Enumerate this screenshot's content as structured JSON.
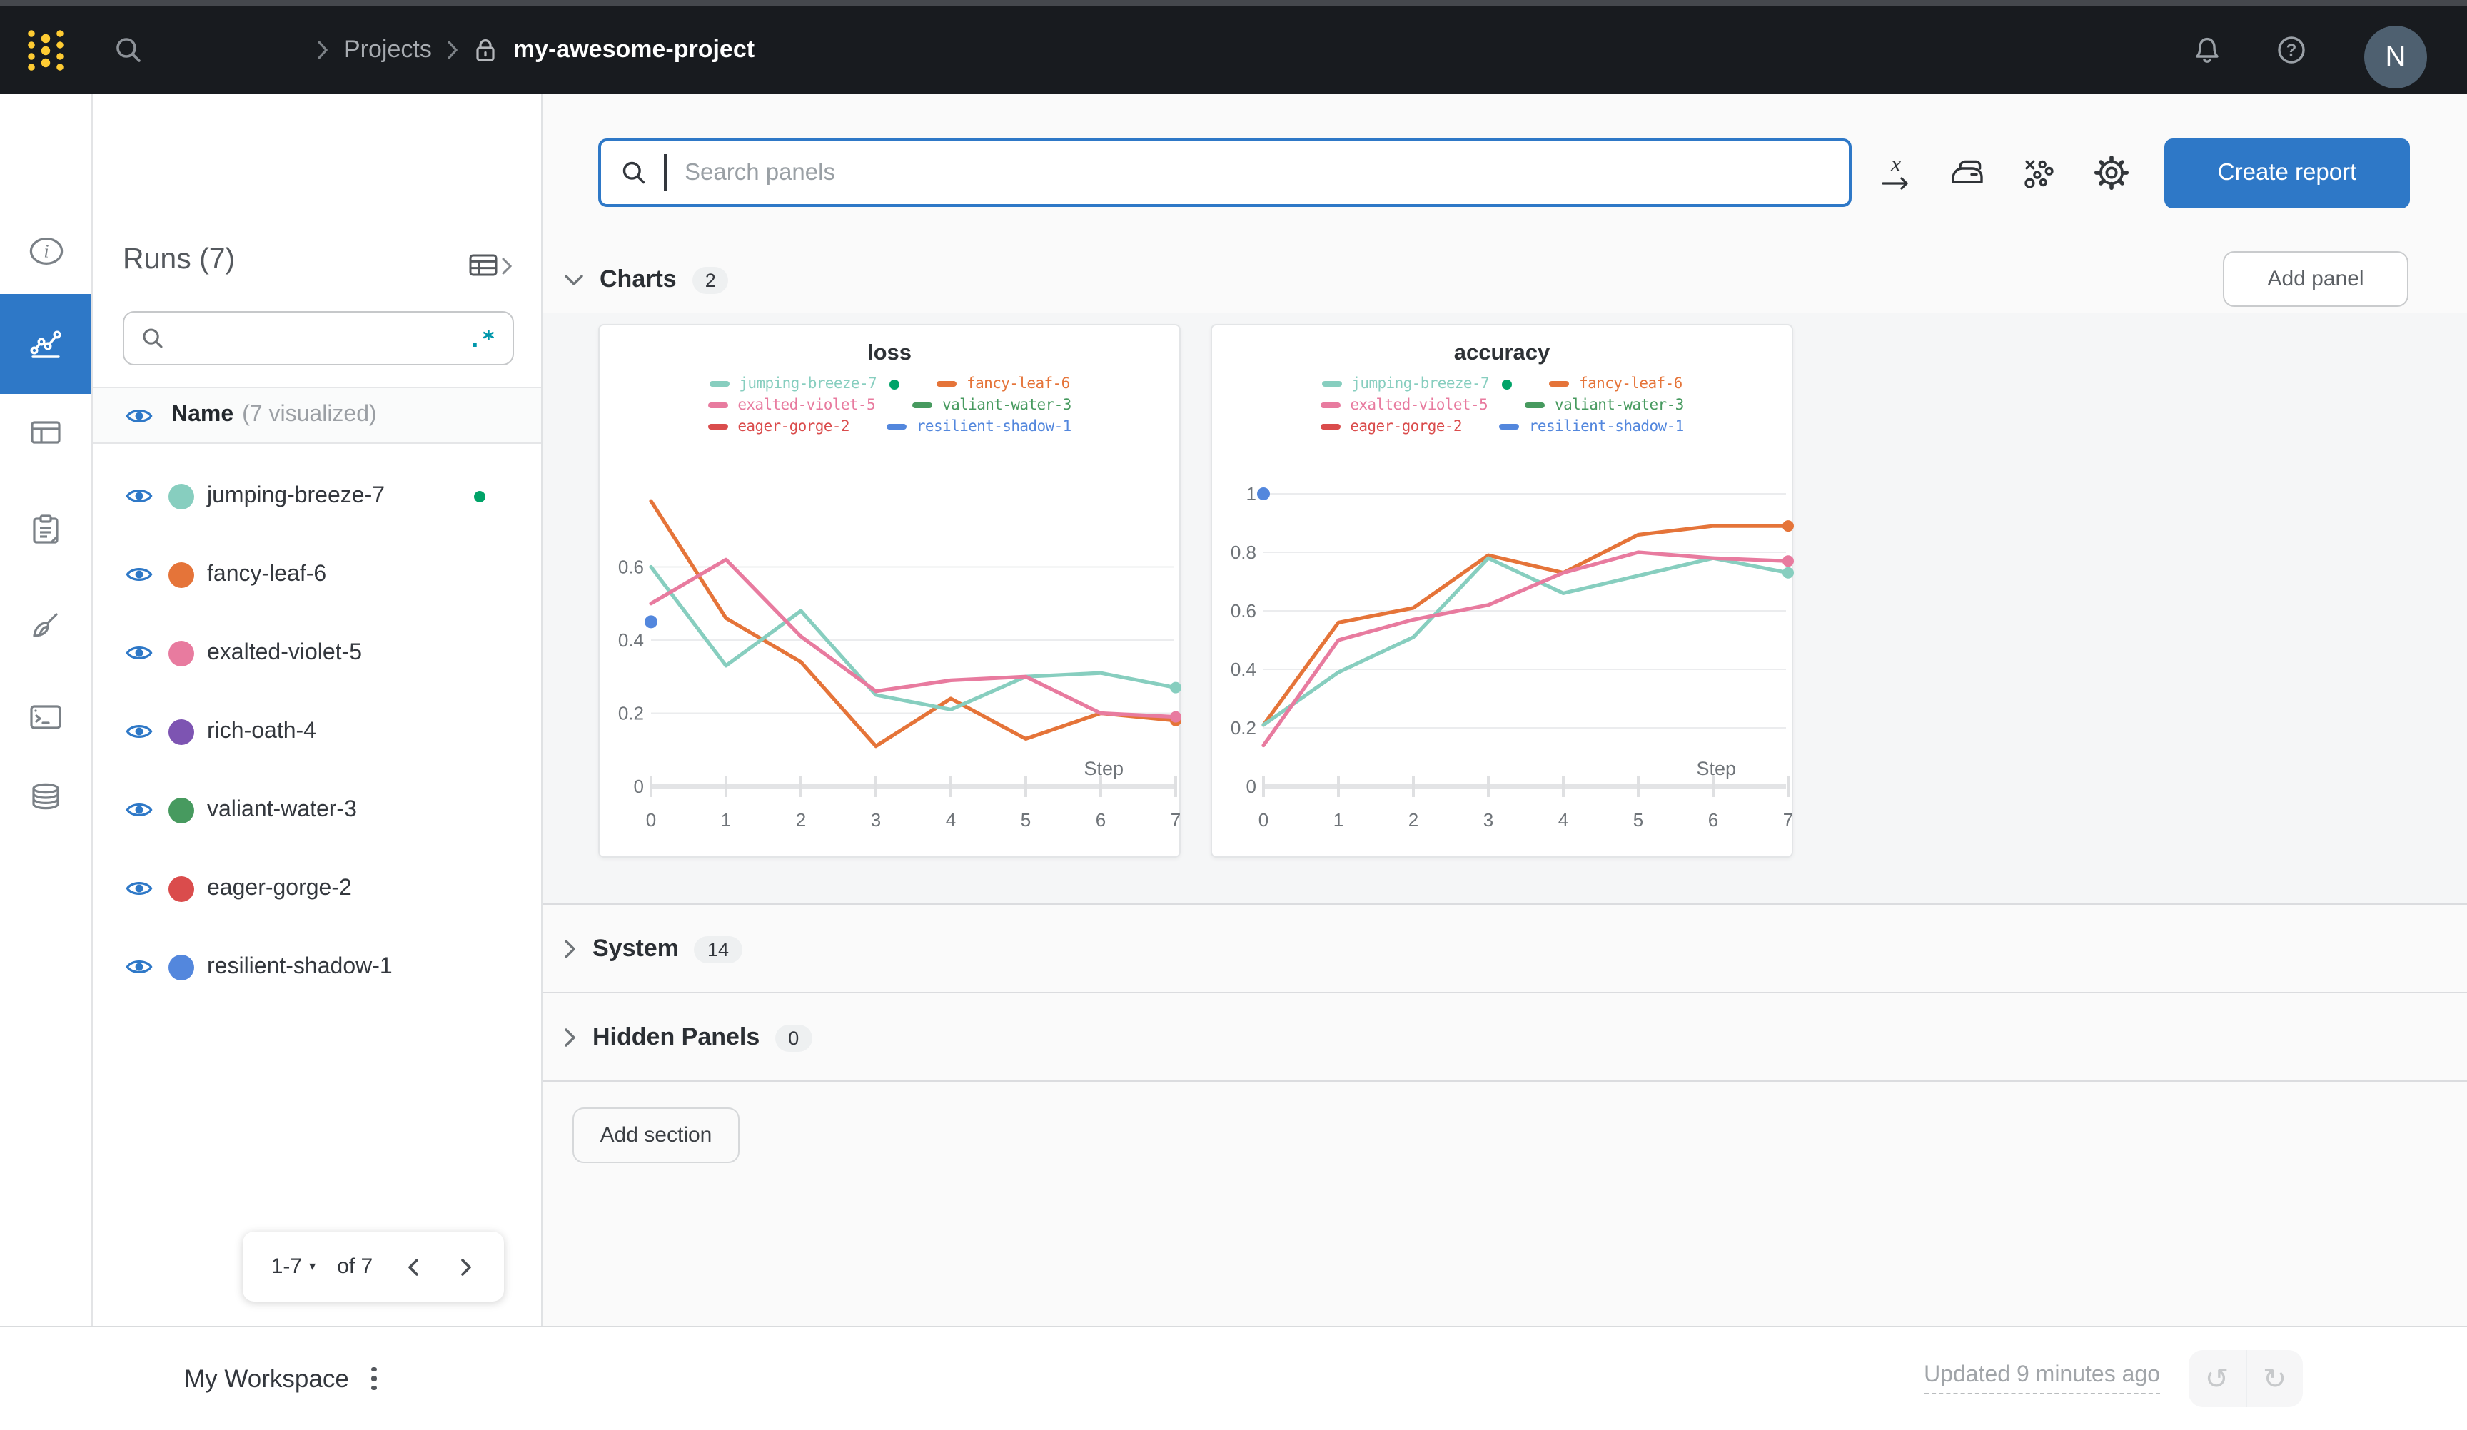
{
  "topbar": {
    "breadcrumb": {
      "section": "Projects",
      "project": "my-awesome-project"
    },
    "avatar_initial": "N"
  },
  "rail": {
    "items": [
      "overview",
      "workspace",
      "runs-table",
      "jobs",
      "sweeps",
      "logs",
      "artifacts"
    ],
    "active_item": "workspace"
  },
  "runs_sidebar": {
    "title": "Runs (7)",
    "search_value": "",
    "regex_badge": ".*",
    "list_header": {
      "name": "Name",
      "annotation": "(7 visualized)"
    },
    "runs": [
      {
        "name": "jumping-breeze-7",
        "color": "#87cebf",
        "running": true
      },
      {
        "name": "fancy-leaf-6",
        "color": "#e57439",
        "running": false
      },
      {
        "name": "exalted-violet-5",
        "color": "#e87b9f",
        "running": false
      },
      {
        "name": "rich-oath-4",
        "color": "#7d54b2",
        "running": false
      },
      {
        "name": "valiant-water-3",
        "color": "#479a5f",
        "running": false
      },
      {
        "name": "eager-gorge-2",
        "color": "#da4c4c",
        "running": false
      },
      {
        "name": "resilient-shadow-1",
        "color": "#5387dd",
        "running": false
      }
    ],
    "pagination": {
      "range": "1-7",
      "of": "of 7"
    }
  },
  "main": {
    "panel_search_placeholder": "Search panels",
    "create_report_label": "Create report",
    "add_panel_label": "Add panel",
    "add_section_label": "Add section",
    "sections": [
      {
        "label": "Charts",
        "count": "2",
        "expanded": true
      },
      {
        "label": "System",
        "count": "14",
        "expanded": false
      },
      {
        "label": "Hidden Panels",
        "count": "0",
        "expanded": false
      }
    ]
  },
  "footer": {
    "workspace_label": "My Workspace",
    "updated_text": "Updated 9 minutes ago"
  },
  "accent": {
    "blue": "#2e78c7",
    "running_green": "#00a368",
    "regex_teal": "#0097ab",
    "logo_yellow": "#ffcc33"
  },
  "chart_data": [
    {
      "type": "line",
      "title": "loss",
      "xlabel": "Step",
      "x": [
        0,
        1,
        2,
        3,
        4,
        5,
        6,
        7
      ],
      "ylim": [
        0,
        0.8
      ],
      "yticks": [
        0,
        0.2,
        0.4,
        0.6
      ],
      "grid": "horizontal",
      "legend_position": "top",
      "series": [
        {
          "name": "jumping-breeze-7",
          "color": "#87cebf",
          "values": [
            0.6,
            0.33,
            0.48,
            0.25,
            0.21,
            0.3,
            0.31,
            0.27
          ],
          "end_dot": true,
          "running": true
        },
        {
          "name": "fancy-leaf-6",
          "color": "#e57439",
          "values": [
            0.78,
            0.46,
            0.34,
            0.11,
            0.24,
            0.13,
            0.2,
            0.18
          ],
          "end_dot": true
        },
        {
          "name": "exalted-violet-5",
          "color": "#e87b9f",
          "values": [
            0.5,
            0.62,
            0.41,
            0.26,
            0.29,
            0.3,
            0.2,
            0.19
          ],
          "end_dot": true
        },
        {
          "name": "valiant-water-3",
          "color": "#479a5f",
          "values": null
        },
        {
          "name": "eager-gorge-2",
          "color": "#da4c4c",
          "values": null
        },
        {
          "name": "resilient-shadow-1",
          "color": "#5387dd",
          "values": [
            0.45
          ],
          "single_point": true
        }
      ]
    },
    {
      "type": "line",
      "title": "accuracy",
      "xlabel": "Step",
      "x": [
        0,
        1,
        2,
        3,
        4,
        5,
        6,
        7
      ],
      "ylim": [
        0,
        1.0
      ],
      "yticks": [
        0,
        0.2,
        0.4,
        0.6,
        0.8,
        1
      ],
      "grid": "horizontal",
      "legend_position": "top",
      "series": [
        {
          "name": "jumping-breeze-7",
          "color": "#87cebf",
          "values": [
            0.21,
            0.39,
            0.51,
            0.78,
            0.66,
            0.72,
            0.78,
            0.73
          ],
          "end_dot": true,
          "running": true
        },
        {
          "name": "fancy-leaf-6",
          "color": "#e57439",
          "values": [
            0.21,
            0.56,
            0.61,
            0.79,
            0.73,
            0.86,
            0.89,
            0.89
          ],
          "end_dot": true
        },
        {
          "name": "exalted-violet-5",
          "color": "#e87b9f",
          "values": [
            0.14,
            0.5,
            0.57,
            0.62,
            0.73,
            0.8,
            0.78,
            0.77
          ],
          "end_dot": true
        },
        {
          "name": "valiant-water-3",
          "color": "#479a5f",
          "values": null
        },
        {
          "name": "eager-gorge-2",
          "color": "#da4c4c",
          "values": null
        },
        {
          "name": "resilient-shadow-1",
          "color": "#5387dd",
          "values": [
            1.0
          ],
          "single_point": true
        }
      ]
    }
  ]
}
